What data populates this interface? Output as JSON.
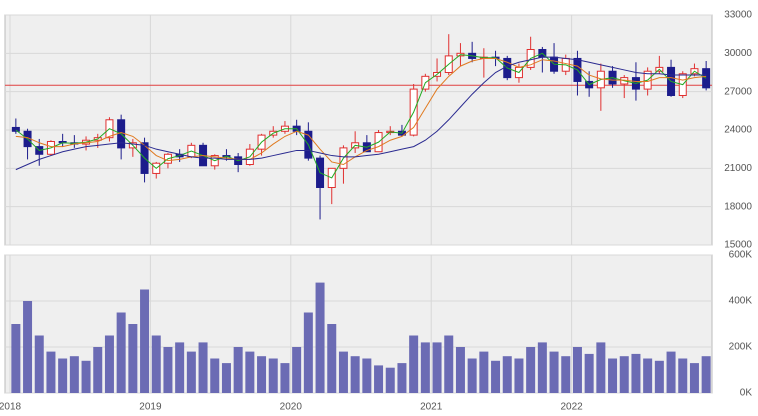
{
  "chart_data": [
    {
      "type": "candlestick",
      "open": [
        24200,
        23900,
        22700,
        22100,
        23100,
        23000,
        22900,
        23200,
        23400,
        24800,
        22600,
        23000,
        20600,
        21400,
        22100,
        21900,
        22800,
        21200,
        22000,
        21900,
        21300,
        22500,
        23600,
        23900,
        24300,
        23900,
        21800,
        19500,
        21000,
        22600,
        23000,
        22300,
        23800,
        23900,
        23600,
        27200,
        28200,
        28500,
        29800,
        30000,
        29600,
        29700,
        29600,
        28100,
        28900,
        30300,
        29700,
        28600,
        29600,
        27800,
        27300,
        28600,
        27600,
        28100,
        27200,
        28600,
        28900,
        26700,
        28400,
        28800
      ],
      "high": [
        24900,
        24100,
        23300,
        23200,
        23700,
        23600,
        23500,
        23700,
        25000,
        25200,
        23300,
        23400,
        21500,
        22200,
        22500,
        23000,
        23000,
        22100,
        22500,
        22200,
        22900,
        23700,
        24300,
        24700,
        24800,
        24600,
        22000,
        21000,
        22800,
        23900,
        23600,
        24000,
        24300,
        24400,
        27600,
        28400,
        29600,
        31500,
        30800,
        30900,
        30400,
        30200,
        29800,
        29200,
        31300,
        30500,
        30800,
        29900,
        30200,
        28600,
        29200,
        29000,
        28300,
        29300,
        28900,
        29800,
        29500,
        28600,
        29200,
        29400
      ],
      "low": [
        23700,
        21700,
        21200,
        22000,
        22700,
        22600,
        22400,
        22600,
        23100,
        21700,
        21900,
        19900,
        20200,
        21000,
        21500,
        21800,
        21200,
        20900,
        21600,
        20700,
        21200,
        22000,
        23400,
        23700,
        23600,
        21600,
        17000,
        18200,
        19800,
        22200,
        22300,
        22300,
        23600,
        23500,
        23500,
        27000,
        27800,
        28300,
        29000,
        29300,
        28100,
        29000,
        27900,
        27700,
        28700,
        28500,
        28400,
        28300,
        26700,
        26600,
        25500,
        27300,
        26500,
        26300,
        26700,
        28400,
        26600,
        26500,
        28200,
        27100
      ],
      "close": [
        23900,
        22700,
        22100,
        23100,
        23000,
        22900,
        23200,
        23400,
        24800,
        22600,
        23000,
        20600,
        21400,
        22100,
        21900,
        22800,
        21200,
        22000,
        21900,
        21300,
        22500,
        23600,
        23900,
        24300,
        23900,
        21800,
        19500,
        21000,
        22600,
        23000,
        22300,
        23800,
        23900,
        23600,
        27200,
        28200,
        28500,
        29800,
        30000,
        29600,
        29700,
        29600,
        28100,
        28900,
        30300,
        29700,
        28600,
        29600,
        27800,
        27300,
        28600,
        27600,
        28100,
        27200,
        28600,
        28900,
        26700,
        28400,
        28800,
        27300
      ],
      "up_color": "#e03030",
      "down_color": "#1c1c8c",
      "series": [
        {
          "color": "#22aa22",
          "values": [
            24000,
            23300,
            22400,
            22600,
            23000,
            22950,
            23050,
            23300,
            24100,
            23700,
            22800,
            21800,
            21000,
            21750,
            22000,
            22350,
            22000,
            21600,
            21950,
            21600,
            21900,
            23050,
            23750,
            24100,
            24100,
            22850,
            20650,
            20250,
            21800,
            22800,
            22650,
            23050,
            23850,
            23750,
            25400,
            27700,
            28350,
            29150,
            29900,
            29800,
            29650,
            29650,
            28850,
            28500,
            29600,
            30000,
            29150,
            29100,
            28700,
            27550,
            27950,
            28100,
            27850,
            27650,
            27900,
            28750,
            27800,
            27550,
            28600,
            28050
          ]
        },
        {
          "color": "#e07a20",
          "values": [
            23500,
            23400,
            23000,
            22700,
            22700,
            22900,
            23000,
            23100,
            23500,
            23800,
            23500,
            22800,
            22000,
            21600,
            21700,
            21900,
            22000,
            21900,
            21800,
            21700,
            21700,
            22200,
            22900,
            23500,
            23900,
            23600,
            22500,
            21500,
            21300,
            21900,
            22400,
            22700,
            23200,
            23500,
            24200,
            25700,
            27200,
            28200,
            29000,
            29400,
            29600,
            29600,
            29300,
            28900,
            29100,
            29500,
            29400,
            29200,
            29000,
            28300,
            28000,
            27900,
            27900,
            27800,
            27800,
            28100,
            28100,
            27900,
            28100,
            28200
          ]
        },
        {
          "color": "#2a2a90",
          "values": [
            20900,
            21300,
            21700,
            22000,
            22300,
            22500,
            22700,
            22800,
            22900,
            23000,
            22900,
            22800,
            22500,
            22300,
            22100,
            21900,
            21800,
            21800,
            21700,
            21700,
            21700,
            21800,
            22000,
            22200,
            22400,
            22400,
            22200,
            22000,
            21900,
            21900,
            22000,
            22100,
            22300,
            22500,
            22700,
            23200,
            23900,
            24800,
            25800,
            26800,
            27700,
            28500,
            29000,
            29300,
            29500,
            29700,
            29700,
            29600,
            29500,
            29300,
            29100,
            28900,
            28700,
            28500,
            28400,
            28400,
            28300,
            28300,
            28300,
            28300
          ]
        }
      ],
      "hline": {
        "value": 27500,
        "color": "#e04040"
      },
      "ylim": [
        15000,
        33000
      ],
      "yticks": [
        15000,
        18000,
        21000,
        24000,
        27000,
        30000,
        33000
      ],
      "grid": true
    },
    {
      "type": "bar",
      "categories": [
        "2018",
        null,
        null,
        null,
        null,
        null,
        null,
        null,
        null,
        null,
        null,
        null,
        "2019",
        null,
        null,
        null,
        null,
        null,
        null,
        null,
        null,
        null,
        null,
        null,
        "2020",
        null,
        null,
        null,
        null,
        null,
        null,
        null,
        null,
        null,
        null,
        null,
        "2021",
        null,
        null,
        null,
        null,
        null,
        null,
        null,
        null,
        null,
        null,
        null,
        "2022",
        null,
        null,
        null,
        null,
        null,
        null,
        null,
        null,
        null,
        null,
        null
      ],
      "values": [
        300000,
        400000,
        250000,
        180000,
        150000,
        160000,
        140000,
        200000,
        250000,
        350000,
        300000,
        450000,
        250000,
        200000,
        220000,
        180000,
        220000,
        150000,
        130000,
        200000,
        180000,
        160000,
        150000,
        130000,
        200000,
        350000,
        480000,
        300000,
        180000,
        160000,
        150000,
        120000,
        110000,
        130000,
        250000,
        220000,
        220000,
        250000,
        200000,
        150000,
        180000,
        140000,
        160000,
        150000,
        200000,
        220000,
        180000,
        160000,
        200000,
        170000,
        220000,
        150000,
        160000,
        170000,
        150000,
        140000,
        180000,
        150000,
        130000,
        160000
      ],
      "color": "#6b6bb4",
      "ylim": [
        0,
        600000
      ],
      "yticks": [
        {
          "value": 0,
          "label": "0K"
        },
        {
          "value": 200000,
          "label": "200K"
        },
        {
          "value": 400000,
          "label": "400K"
        },
        {
          "value": 600000,
          "label": "600K"
        }
      ],
      "grid": true
    }
  ]
}
